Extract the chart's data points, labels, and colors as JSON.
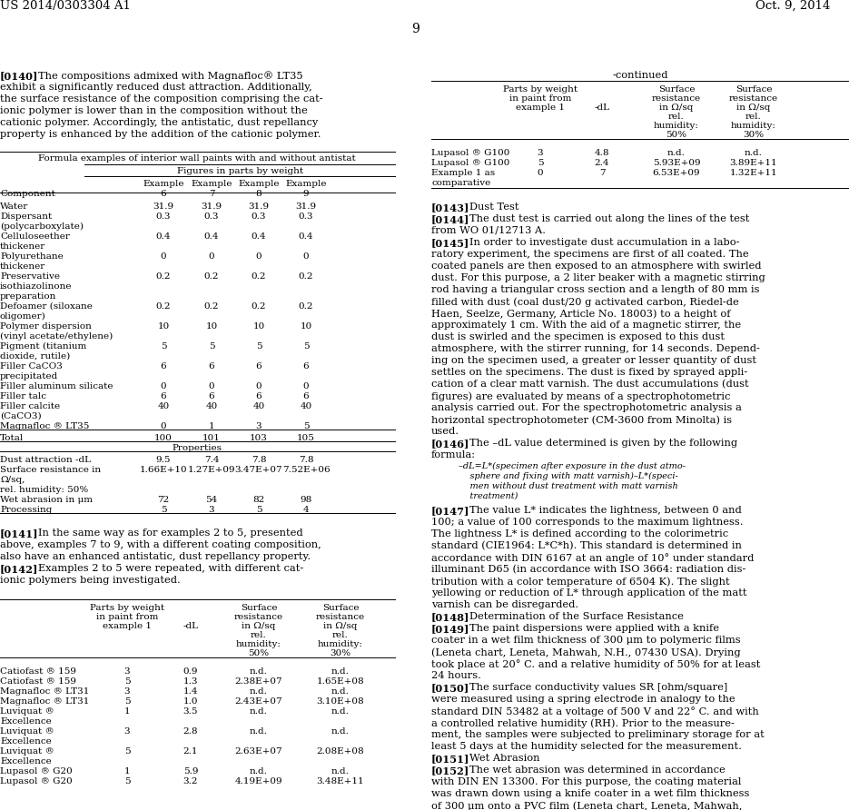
{
  "bg_color": "#ffffff",
  "header_left": "US 2014/0303304 A1",
  "header_right": "Oct. 9, 2014",
  "page_number": "9"
}
